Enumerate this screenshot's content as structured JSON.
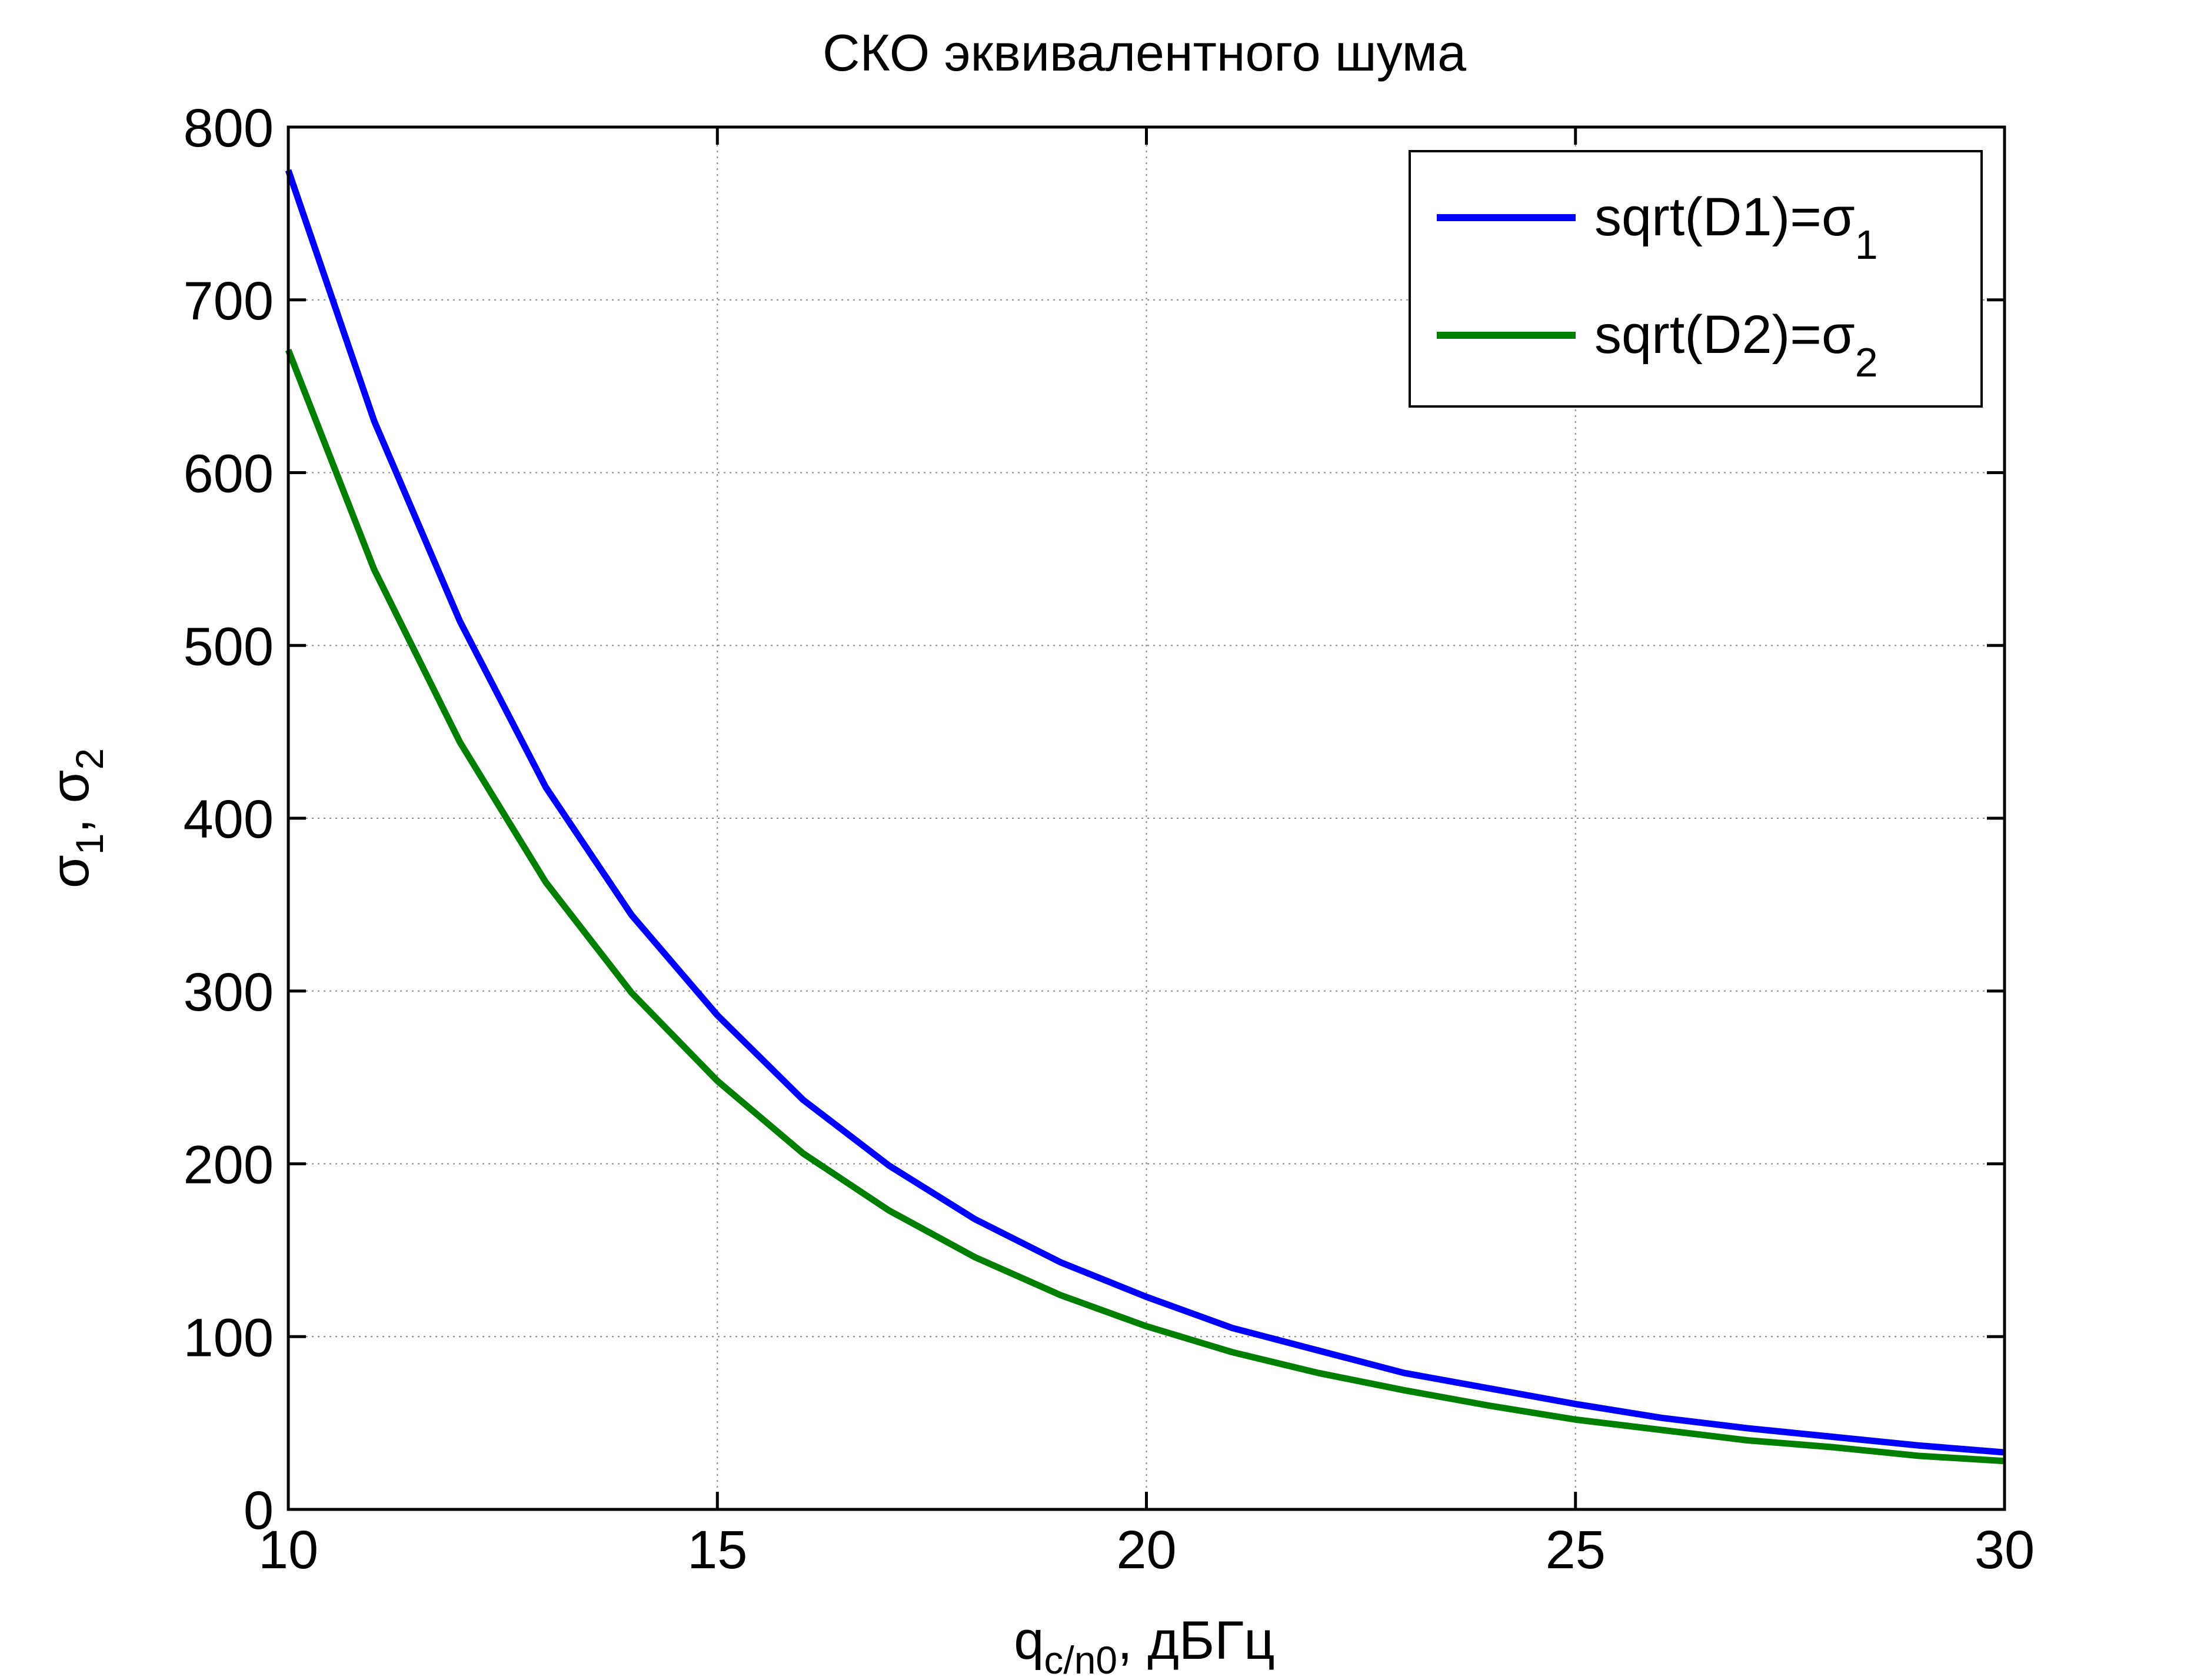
{
  "chart_data": {
    "type": "line",
    "title": "СКО эквивалентного шума",
    "xlabel": {
      "main": "q",
      "sub": "c/n0",
      "suffix": ", дБГц"
    },
    "ylabel": {
      "s1": "σ",
      "sub1": "1",
      "sep": ", ",
      "s2": "σ",
      "sub2": "2"
    },
    "xlim": [
      10,
      30
    ],
    "ylim": [
      0,
      800
    ],
    "xticks": [
      10,
      15,
      20,
      25,
      30
    ],
    "yticks": [
      0,
      100,
      200,
      300,
      400,
      500,
      600,
      700,
      800
    ],
    "grid": true,
    "legend_placement": "top-right",
    "x": [
      10,
      11,
      12,
      13,
      14,
      15,
      16,
      17,
      18,
      19,
      20,
      21,
      22,
      23,
      24,
      25,
      26,
      27,
      28,
      29,
      30
    ],
    "series": [
      {
        "name": "sqrt(D1)=σ",
        "name_sub": "1",
        "color": "#0000ff",
        "values": [
          775,
          630,
          514,
          418,
          344,
          286,
          237,
          199,
          168,
          143,
          123,
          105,
          92,
          79,
          70,
          61,
          53,
          47,
          42,
          37,
          33
        ]
      },
      {
        "name": "sqrt(D2)=σ",
        "name_sub": "2",
        "color": "#007f00",
        "values": [
          671,
          544,
          444,
          363,
          299,
          248,
          206,
          173,
          146,
          124,
          106,
          91,
          79,
          69,
          60,
          52,
          46,
          40,
          36,
          31,
          28
        ]
      }
    ]
  }
}
